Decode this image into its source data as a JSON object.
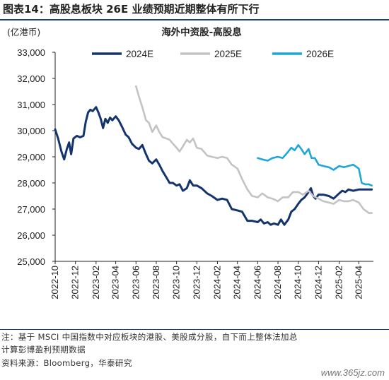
{
  "figure": {
    "label": "图表14：",
    "title": "高股息板块 26E 业绩预期近期整体有所下行"
  },
  "chart_data": {
    "type": "line",
    "title": "海外中资股-高股息",
    "unit": "(亿港币)",
    "ylim": [
      25000,
      33000
    ],
    "yticks": [
      25000,
      26000,
      27000,
      28000,
      29000,
      30000,
      31000,
      32000,
      33000
    ],
    "ytick_labels": [
      "25,000",
      "26,000",
      "27,000",
      "28,000",
      "29,000",
      "30,000",
      "31,000",
      "32,000",
      "33,000"
    ],
    "xlim": [
      "2022-10-01",
      "2025-05-15"
    ],
    "xticks": [
      "2022-10",
      "2022-12",
      "2023-02",
      "2023-04",
      "2023-06",
      "2023-08",
      "2023-10",
      "2023-12",
      "2024-02",
      "2024-04",
      "2024-06",
      "2024-08",
      "2024-10",
      "2024-12",
      "2025-02",
      "2025-04"
    ],
    "legend_position": "top",
    "series": [
      {
        "name": "2024E",
        "color": "#13346c",
        "points": [
          [
            "2022-10-01",
            30050
          ],
          [
            "2022-10-10",
            29700
          ],
          [
            "2022-10-20",
            29200
          ],
          [
            "2022-10-28",
            28900
          ],
          [
            "2022-11-05",
            29300
          ],
          [
            "2022-11-12",
            29550
          ],
          [
            "2022-11-18",
            29100
          ],
          [
            "2022-11-25",
            29700
          ],
          [
            "2022-12-05",
            29800
          ],
          [
            "2022-12-15",
            29750
          ],
          [
            "2022-12-25",
            29800
          ],
          [
            "2023-01-01",
            30350
          ],
          [
            "2023-01-08",
            30700
          ],
          [
            "2023-01-15",
            30800
          ],
          [
            "2023-01-22",
            30750
          ],
          [
            "2023-02-01",
            30900
          ],
          [
            "2023-02-08",
            30700
          ],
          [
            "2023-02-15",
            30450
          ],
          [
            "2023-02-22",
            30100
          ],
          [
            "2023-03-01",
            30450
          ],
          [
            "2023-03-08",
            30300
          ],
          [
            "2023-03-15",
            30500
          ],
          [
            "2023-03-22",
            30400
          ],
          [
            "2023-04-01",
            30550
          ],
          [
            "2023-04-10",
            30400
          ],
          [
            "2023-04-20",
            30150
          ],
          [
            "2023-05-01",
            29850
          ],
          [
            "2023-05-10",
            29750
          ],
          [
            "2023-05-20",
            29500
          ],
          [
            "2023-06-01",
            29350
          ],
          [
            "2023-06-10",
            29300
          ],
          [
            "2023-06-20",
            29450
          ],
          [
            "2023-07-01",
            29100
          ],
          [
            "2023-07-10",
            28850
          ],
          [
            "2023-07-20",
            28750
          ],
          [
            "2023-08-01",
            28900
          ],
          [
            "2023-08-10",
            28700
          ],
          [
            "2023-08-20",
            28450
          ],
          [
            "2023-09-01",
            28200
          ],
          [
            "2023-09-10",
            28000
          ],
          [
            "2023-09-20",
            28000
          ],
          [
            "2023-10-01",
            27900
          ],
          [
            "2023-10-10",
            27950
          ],
          [
            "2023-10-20",
            27700
          ],
          [
            "2023-11-01",
            27800
          ],
          [
            "2023-11-10",
            28100
          ],
          [
            "2023-11-20",
            27900
          ],
          [
            "2023-12-01",
            27900
          ],
          [
            "2023-12-15",
            27800
          ],
          [
            "2024-01-01",
            27600
          ],
          [
            "2024-01-15",
            27500
          ],
          [
            "2024-02-01",
            27350
          ],
          [
            "2024-02-15",
            27400
          ],
          [
            "2024-03-01",
            27350
          ],
          [
            "2024-03-15",
            27000
          ],
          [
            "2024-04-01",
            26950
          ],
          [
            "2024-04-15",
            26900
          ],
          [
            "2024-05-01",
            26550
          ],
          [
            "2024-05-15",
            26550
          ],
          [
            "2024-06-01",
            26500
          ],
          [
            "2024-06-10",
            26600
          ],
          [
            "2024-06-20",
            26450
          ],
          [
            "2024-07-01",
            26500
          ],
          [
            "2024-07-10",
            26400
          ],
          [
            "2024-07-20",
            26450
          ],
          [
            "2024-08-01",
            26400
          ],
          [
            "2024-08-10",
            26600
          ],
          [
            "2024-08-20",
            26400
          ],
          [
            "2024-09-01",
            26600
          ],
          [
            "2024-09-10",
            26900
          ],
          [
            "2024-09-20",
            27000
          ],
          [
            "2024-10-01",
            27200
          ],
          [
            "2024-10-10",
            27350
          ],
          [
            "2024-10-20",
            27450
          ],
          [
            "2024-11-01",
            27650
          ],
          [
            "2024-11-08",
            27800
          ],
          [
            "2024-11-15",
            27500
          ],
          [
            "2024-11-22",
            27400
          ],
          [
            "2024-12-01",
            27550
          ],
          [
            "2024-12-15",
            27550
          ],
          [
            "2025-01-01",
            27500
          ],
          [
            "2025-01-15",
            27400
          ],
          [
            "2025-02-01",
            27600
          ],
          [
            "2025-02-10",
            27700
          ],
          [
            "2025-02-20",
            27650
          ],
          [
            "2025-03-01",
            27750
          ],
          [
            "2025-03-15",
            27700
          ],
          [
            "2025-04-01",
            27750
          ],
          [
            "2025-04-15",
            27750
          ],
          [
            "2025-05-01",
            27750
          ],
          [
            "2025-05-10",
            27750
          ]
        ]
      },
      {
        "name": "2025E",
        "color": "#c3c3c3",
        "points": [
          [
            "2023-06-01",
            31700
          ],
          [
            "2023-06-10",
            31300
          ],
          [
            "2023-06-20",
            30900
          ],
          [
            "2023-07-01",
            30400
          ],
          [
            "2023-07-10",
            30300
          ],
          [
            "2023-07-20",
            29950
          ],
          [
            "2023-08-01",
            30200
          ],
          [
            "2023-08-10",
            29950
          ],
          [
            "2023-08-20",
            29750
          ],
          [
            "2023-09-01",
            29700
          ],
          [
            "2023-09-10",
            29650
          ],
          [
            "2023-09-20",
            29500
          ],
          [
            "2023-10-01",
            29350
          ],
          [
            "2023-10-10",
            29200
          ],
          [
            "2023-10-20",
            29400
          ],
          [
            "2023-11-01",
            29650
          ],
          [
            "2023-11-10",
            29550
          ],
          [
            "2023-11-20",
            29700
          ],
          [
            "2023-12-01",
            29350
          ],
          [
            "2023-12-15",
            29300
          ],
          [
            "2024-01-01",
            29050
          ],
          [
            "2024-01-15",
            29000
          ],
          [
            "2024-02-01",
            28950
          ],
          [
            "2024-02-15",
            29000
          ],
          [
            "2024-03-01",
            28950
          ],
          [
            "2024-03-15",
            28700
          ],
          [
            "2024-04-01",
            28550
          ],
          [
            "2024-04-15",
            28150
          ],
          [
            "2024-05-01",
            27750
          ],
          [
            "2024-05-15",
            27500
          ],
          [
            "2024-06-01",
            27450
          ],
          [
            "2024-06-15",
            27600
          ],
          [
            "2024-07-01",
            27450
          ],
          [
            "2024-07-15",
            27400
          ],
          [
            "2024-08-01",
            27300
          ],
          [
            "2024-08-15",
            27450
          ],
          [
            "2024-09-01",
            27450
          ],
          [
            "2024-09-15",
            27650
          ],
          [
            "2024-10-01",
            27650
          ],
          [
            "2024-10-15",
            27550
          ],
          [
            "2024-11-01",
            27700
          ],
          [
            "2024-11-15",
            27500
          ],
          [
            "2024-12-01",
            27400
          ],
          [
            "2024-12-15",
            27300
          ],
          [
            "2025-01-01",
            27250
          ],
          [
            "2025-01-15",
            27200
          ],
          [
            "2025-02-01",
            27350
          ],
          [
            "2025-02-15",
            27300
          ],
          [
            "2025-03-01",
            27300
          ],
          [
            "2025-03-15",
            27350
          ],
          [
            "2025-04-01",
            27250
          ],
          [
            "2025-04-15",
            27000
          ],
          [
            "2025-05-01",
            26850
          ],
          [
            "2025-05-10",
            26850
          ]
        ]
      },
      {
        "name": "2026E",
        "color": "#1ea7d8",
        "points": [
          [
            "2024-06-01",
            28950
          ],
          [
            "2024-06-15",
            28900
          ],
          [
            "2024-07-01",
            28850
          ],
          [
            "2024-07-15",
            28950
          ],
          [
            "2024-08-01",
            29000
          ],
          [
            "2024-08-15",
            28950
          ],
          [
            "2024-09-01",
            29200
          ],
          [
            "2024-09-10",
            29350
          ],
          [
            "2024-09-20",
            29250
          ],
          [
            "2024-10-01",
            29450
          ],
          [
            "2024-10-10",
            29300
          ],
          [
            "2024-10-20",
            29100
          ],
          [
            "2024-11-01",
            29300
          ],
          [
            "2024-11-10",
            28950
          ],
          [
            "2024-11-20",
            28950
          ],
          [
            "2024-12-01",
            28700
          ],
          [
            "2024-12-15",
            28650
          ],
          [
            "2025-01-01",
            28600
          ],
          [
            "2025-01-15",
            28500
          ],
          [
            "2025-02-01",
            28650
          ],
          [
            "2025-02-15",
            28600
          ],
          [
            "2025-03-01",
            28650
          ],
          [
            "2025-03-15",
            28700
          ],
          [
            "2025-04-01",
            28550
          ],
          [
            "2025-04-10",
            28000
          ],
          [
            "2025-04-20",
            27950
          ],
          [
            "2025-05-01",
            27950
          ],
          [
            "2025-05-10",
            27900
          ]
        ]
      }
    ]
  },
  "notes": {
    "line1": "注：基于 MSCI 中国指数中对应板块的港股、美股成分股，自下而上整体法加总",
    "line2": "计算彭博盈利预期数据",
    "source": "资料来源：Bloomberg，华泰研究"
  },
  "watermark": "www.365jz.com"
}
